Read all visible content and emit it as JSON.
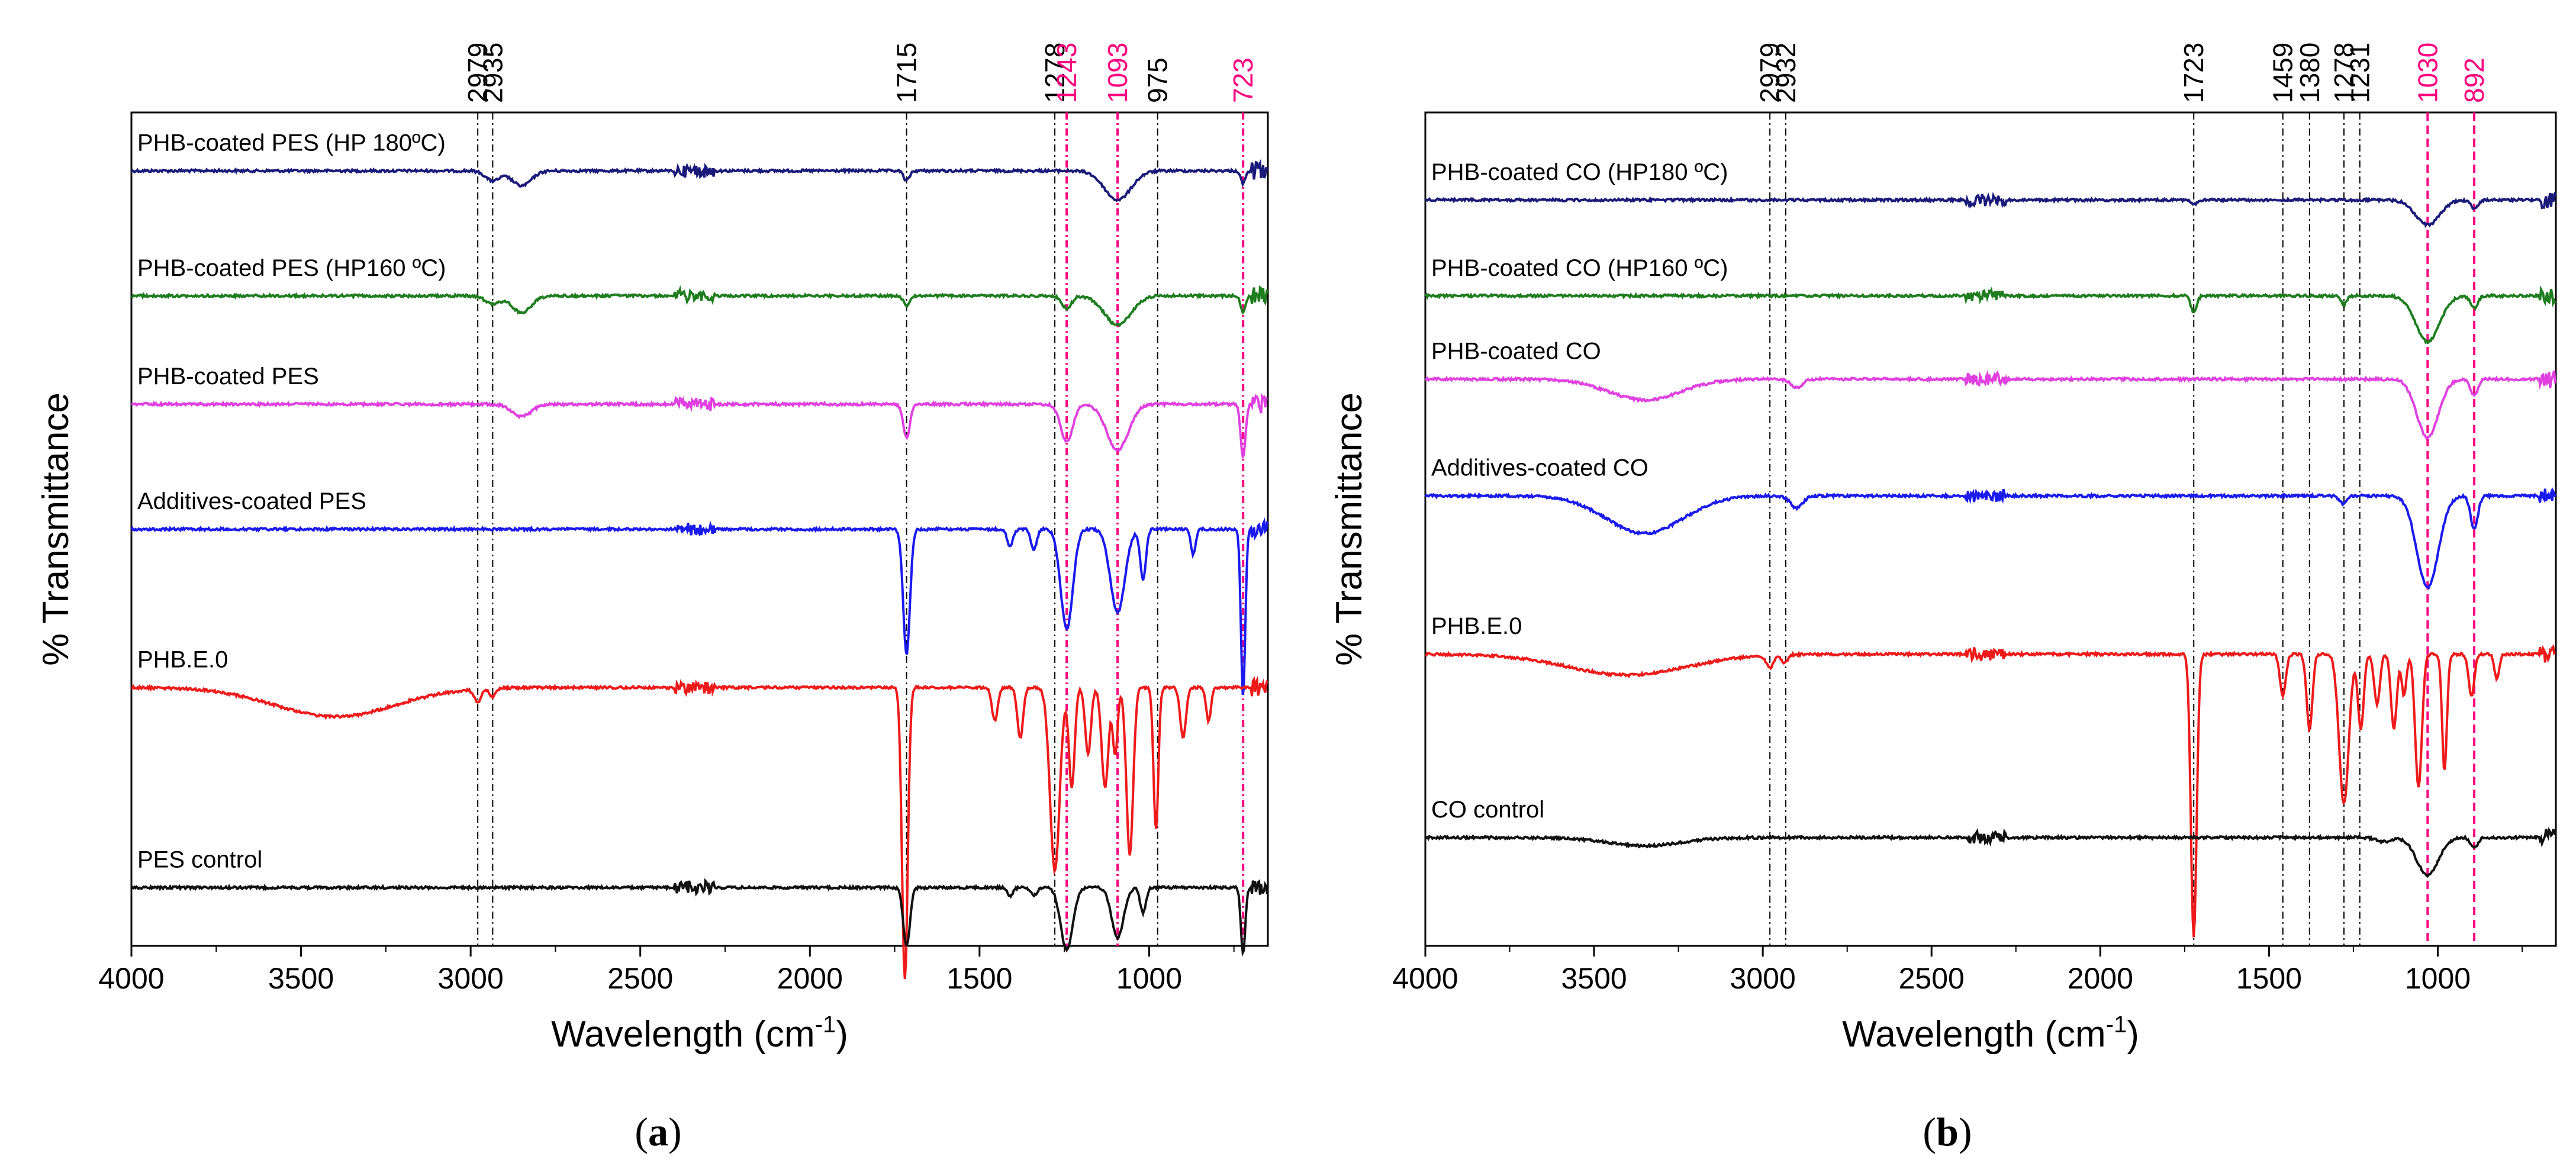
{
  "colors": {
    "black_ref": "#000000",
    "magenta_ref": "#ff0080",
    "axis": "#000000"
  },
  "chart_data": [
    {
      "type": "line",
      "panel": "(a)",
      "panel_letter": "a",
      "xlabel": "Wavelength (cm",
      "xlabel_sup": "-1",
      "xlabel_close": ")",
      "ylabel": "% Transmittance",
      "xlim": [
        4000,
        650
      ],
      "xticks": [
        4000,
        3500,
        3000,
        2500,
        2000,
        1500,
        1000
      ],
      "peaks": [
        {
          "label": "2979",
          "x": 2979,
          "color": "#000000",
          "style": "dashdot"
        },
        {
          "label": "2935",
          "x": 2935,
          "color": "#000000",
          "style": "dashdot"
        },
        {
          "label": "1715",
          "x": 1715,
          "color": "#000000",
          "style": "dashdot"
        },
        {
          "label": "1278",
          "x": 1278,
          "color": "#000000",
          "style": "dashdot"
        },
        {
          "label": "1243",
          "x": 1243,
          "color": "#ff0080",
          "style": "dashdot"
        },
        {
          "label": "1093",
          "x": 1093,
          "color": "#ff0080",
          "style": "dashdot"
        },
        {
          "label": "975",
          "x": 975,
          "color": "#000000",
          "style": "dashdot"
        },
        {
          "label": "723",
          "x": 723,
          "color": "#ff0080",
          "style": "dashdot"
        }
      ],
      "series": [
        {
          "name": "PHB-coated PES (HP 180ºC)",
          "color": "#1a1a7a",
          "baseline": 0.07,
          "dips": [
            [
              2935,
              0.012,
              30
            ],
            [
              2850,
              0.018,
              40
            ],
            [
              1715,
              0.012,
              12
            ],
            [
              1093,
              0.035,
              55
            ],
            [
              723,
              0.015,
              10
            ]
          ]
        },
        {
          "name": "PHB-coated PES (HP160 ºC)",
          "color": "#1e7d1e",
          "baseline": 0.22,
          "dips": [
            [
              2935,
              0.01,
              30
            ],
            [
              2850,
              0.02,
              40
            ],
            [
              1715,
              0.012,
              12
            ],
            [
              1243,
              0.015,
              20
            ],
            [
              1093,
              0.035,
              55
            ],
            [
              723,
              0.02,
              10
            ]
          ]
        },
        {
          "name": "PHB-coated PES",
          "color": "#e040e0",
          "baseline": 0.35,
          "dips": [
            [
              2850,
              0.015,
              40
            ],
            [
              1715,
              0.04,
              14
            ],
            [
              1243,
              0.045,
              25
            ],
            [
              1093,
              0.055,
              45
            ],
            [
              723,
              0.065,
              10
            ]
          ]
        },
        {
          "name": "Additives-coated PES",
          "color": "#1a1aee",
          "baseline": 0.5,
          "dips": [
            [
              1715,
              0.15,
              14
            ],
            [
              1410,
              0.02,
              12
            ],
            [
              1340,
              0.025,
              12
            ],
            [
              1243,
              0.12,
              25
            ],
            [
              1093,
              0.1,
              30
            ],
            [
              1018,
              0.06,
              12
            ],
            [
              870,
              0.03,
              10
            ],
            [
              723,
              0.2,
              9
            ]
          ]
        },
        {
          "name": "PHB.E.0",
          "color": "#ee1a1a",
          "baseline": 0.69,
          "dips": [
            [
              3400,
              0.035,
              250
            ],
            [
              2979,
              0.015,
              15
            ],
            [
              2935,
              0.01,
              12
            ],
            [
              1720,
              0.35,
              12
            ],
            [
              1455,
              0.04,
              12
            ],
            [
              1380,
              0.06,
              12
            ],
            [
              1278,
              0.22,
              20
            ],
            [
              1228,
              0.12,
              12
            ],
            [
              1180,
              0.08,
              12
            ],
            [
              1130,
              0.12,
              14
            ],
            [
              1100,
              0.08,
              10
            ],
            [
              1057,
              0.2,
              14
            ],
            [
              980,
              0.17,
              10
            ],
            [
              900,
              0.06,
              12
            ],
            [
              825,
              0.04,
              10
            ]
          ]
        },
        {
          "name": "PES control",
          "color": "#111111",
          "baseline": 0.93,
          "dips": [
            [
              1715,
              0.07,
              14
            ],
            [
              1410,
              0.01,
              12
            ],
            [
              1340,
              0.01,
              12
            ],
            [
              1243,
              0.075,
              25
            ],
            [
              1093,
              0.06,
              25
            ],
            [
              1018,
              0.03,
              12
            ],
            [
              723,
              0.08,
              9
            ]
          ]
        }
      ]
    },
    {
      "type": "line",
      "panel": "(b)",
      "panel_letter": "b",
      "xlabel": "Wavelength (cm",
      "xlabel_sup": "-1",
      "xlabel_close": ")",
      "ylabel": "% Transmittance",
      "xlim": [
        4000,
        650
      ],
      "xticks": [
        4000,
        3500,
        3000,
        2500,
        2000,
        1500,
        1000
      ],
      "peaks": [
        {
          "label": "2979",
          "x": 2979,
          "color": "#000000",
          "style": "dashdot"
        },
        {
          "label": "2932",
          "x": 2932,
          "color": "#000000",
          "style": "dashdot"
        },
        {
          "label": "1723",
          "x": 1723,
          "color": "#000000",
          "style": "dashdot"
        },
        {
          "label": "1459",
          "x": 1459,
          "color": "#000000",
          "style": "dashdot"
        },
        {
          "label": "1380",
          "x": 1380,
          "color": "#000000",
          "style": "dashdot"
        },
        {
          "label": "1278",
          "x": 1278,
          "color": "#000000",
          "style": "dashdot"
        },
        {
          "label": "1231",
          "x": 1231,
          "color": "#000000",
          "style": "dashdot"
        },
        {
          "label": "1030",
          "x": 1030,
          "color": "#ff0080",
          "style": "dashdash"
        },
        {
          "label": "892",
          "x": 892,
          "color": "#ff0080",
          "style": "dashdash"
        }
      ],
      "series": [
        {
          "name": "PHB-coated CO (HP180 ºC)",
          "color": "#1a1a7a",
          "baseline": 0.105,
          "dips": [
            [
              1723,
              0.005,
              12
            ],
            [
              1030,
              0.03,
              50
            ],
            [
              892,
              0.01,
              15
            ]
          ]
        },
        {
          "name": "PHB-coated CO (HP160 ºC)",
          "color": "#1e7d1e",
          "baseline": 0.22,
          "dips": [
            [
              1723,
              0.02,
              12
            ],
            [
              1278,
              0.01,
              12
            ],
            [
              1030,
              0.055,
              50
            ],
            [
              892,
              0.015,
              15
            ]
          ]
        },
        {
          "name": "PHB-coated CO",
          "color": "#e040e0",
          "baseline": 0.32,
          "dips": [
            [
              3350,
              0.025,
              150
            ],
            [
              2900,
              0.01,
              25
            ],
            [
              1030,
              0.07,
              45
            ],
            [
              892,
              0.02,
              15
            ]
          ]
        },
        {
          "name": "Additives-coated CO",
          "color": "#1a1aee",
          "baseline": 0.46,
          "dips": [
            [
              3350,
              0.045,
              160
            ],
            [
              2900,
              0.015,
              25
            ],
            [
              1280,
              0.01,
              15
            ],
            [
              1030,
              0.11,
              45
            ],
            [
              892,
              0.04,
              15
            ]
          ]
        },
        {
          "name": "PHB.E.0",
          "color": "#ee1a1a",
          "baseline": 0.65,
          "dips": [
            [
              3400,
              0.025,
              250
            ],
            [
              2979,
              0.015,
              15
            ],
            [
              2935,
              0.01,
              12
            ],
            [
              1723,
              0.34,
              12
            ],
            [
              1459,
              0.05,
              12
            ],
            [
              1380,
              0.09,
              12
            ],
            [
              1278,
              0.18,
              20
            ],
            [
              1228,
              0.09,
              12
            ],
            [
              1180,
              0.06,
              12
            ],
            [
              1130,
              0.09,
              12
            ],
            [
              1100,
              0.05,
              10
            ],
            [
              1057,
              0.16,
              14
            ],
            [
              980,
              0.14,
              10
            ],
            [
              900,
              0.05,
              12
            ],
            [
              825,
              0.03,
              10
            ]
          ]
        },
        {
          "name": "CO control",
          "color": "#111111",
          "baseline": 0.87,
          "dips": [
            [
              3350,
              0.01,
              150
            ],
            [
              1160,
              0.005,
              30
            ],
            [
              1030,
              0.045,
              45
            ],
            [
              892,
              0.012,
              15
            ]
          ]
        }
      ]
    }
  ]
}
